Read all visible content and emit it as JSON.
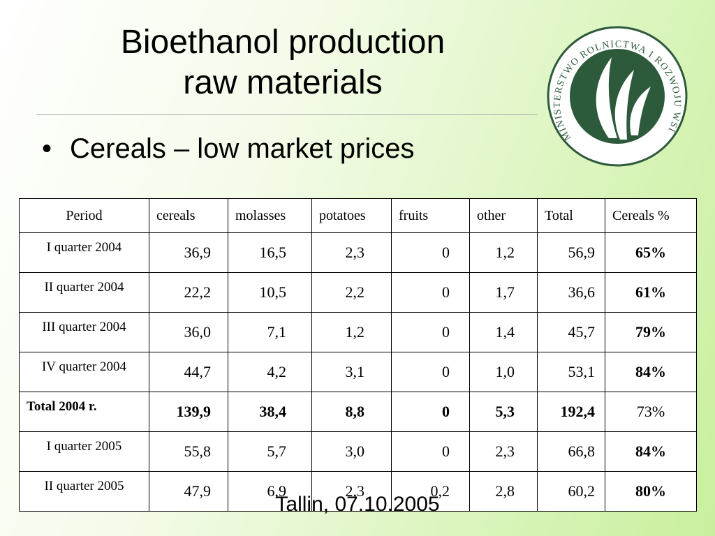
{
  "slide": {
    "title_line1": "Bioethanol production",
    "title_line2": "raw materials",
    "bullet": "Cereals – low market prices",
    "footer": "Tallin, 07.10.2005"
  },
  "logo": {
    "ring_text": "MINISTERSTWO ROLNICTWA I ROZWOJU WSI",
    "color": "#2e5a3c"
  },
  "table": {
    "headers": [
      "Period",
      "cereals",
      "molasses",
      "potatoes",
      "fruits",
      "other",
      "Total",
      "Cereals %"
    ],
    "rows": [
      [
        "I quarter 2004",
        "36,9",
        "16,5",
        "2,3",
        "0",
        "1,2",
        "56,9",
        "65%"
      ],
      [
        "II quarter 2004",
        "22,2",
        "10,5",
        "2,2",
        "0",
        "1,7",
        "36,6",
        "61%"
      ],
      [
        "III quarter 2004",
        "36,0",
        "7,1",
        "1,2",
        "0",
        "1,4",
        "45,7",
        "79%"
      ],
      [
        "IV quarter 2004",
        "44,7",
        "4,2",
        "3,1",
        "0",
        "1,0",
        "53,1",
        "84%"
      ],
      [
        "Total 2004 r.",
        "139,9",
        "38,4",
        "8,8",
        "0",
        "5,3",
        "192,4",
        "73%"
      ],
      [
        "I quarter 2005",
        "55,8",
        "5,7",
        "3,0",
        "0",
        "2,3",
        "66,8",
        "84%"
      ],
      [
        "II quarter 2005",
        "47,9",
        "6,9",
        "2,3",
        "0,2",
        "2,8",
        "60,2",
        "80%"
      ]
    ]
  }
}
